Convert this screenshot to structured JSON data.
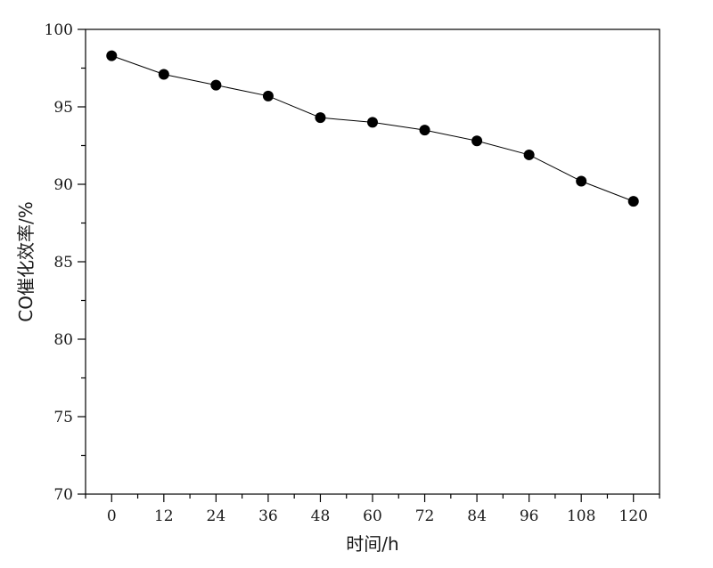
{
  "chart_data": {
    "type": "line",
    "xlabel": "时间/h",
    "ylabel": "CO催化效率/%",
    "x": [
      0,
      12,
      24,
      36,
      48,
      60,
      72,
      84,
      96,
      108,
      120
    ],
    "series": [
      {
        "values": [
          98.3,
          97.1,
          96.4,
          95.7,
          94.3,
          94.0,
          93.5,
          92.8,
          91.9,
          90.2,
          88.9
        ]
      }
    ],
    "xlim": [
      -6,
      126
    ],
    "ylim": [
      70,
      100
    ],
    "xticks": [
      0,
      12,
      24,
      36,
      48,
      60,
      72,
      84,
      96,
      108,
      120
    ],
    "yticks": [
      70,
      75,
      80,
      85,
      90,
      95,
      100
    ],
    "grid": false,
    "marker": "filled-circle",
    "colors": {
      "line": "#000000",
      "marker": "#000000"
    }
  }
}
